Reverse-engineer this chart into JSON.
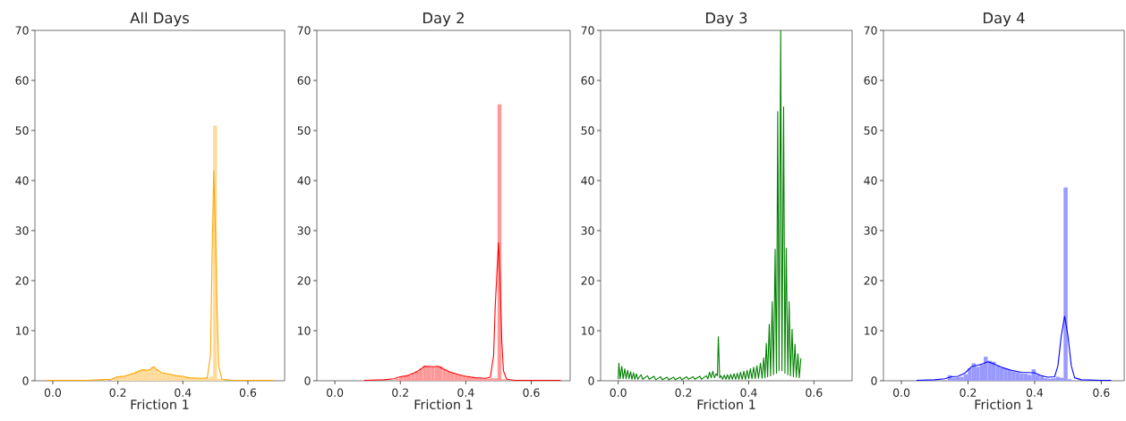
{
  "chart_data": [
    {
      "type": "histogram",
      "title": "All Days",
      "xlabel": "Friction 1",
      "xlim": [
        -0.055,
        0.713
      ],
      "ylim": [
        0,
        70
      ],
      "xticks": [
        {
          "value": 0,
          "label": "0.0"
        },
        {
          "value": 0.2,
          "label": "0.2"
        },
        {
          "value": 0.4,
          "label": "0.4"
        },
        {
          "value": 0.6,
          "label": "0.6"
        }
      ],
      "yticks": [
        0,
        10,
        20,
        30,
        40,
        50,
        60,
        70
      ],
      "series": [
        {
          "color": "#ffdb99",
          "bins": [
            0.145,
            0.157,
            0.169,
            0.181,
            0.193,
            0.205,
            0.217,
            0.229,
            0.241,
            0.253,
            0.265,
            0.277,
            0.289,
            0.301,
            0.313,
            0.325,
            0.337,
            0.349,
            0.361,
            0.373,
            0.385,
            0.397,
            0.409,
            0.421,
            0.433,
            0.445,
            0.457,
            0.469,
            0.481,
            0.493,
            0.505,
            0.517,
            0.529
          ],
          "values": [
            null,
            0.3,
            null,
            0.5,
            0.8,
            1.0,
            1.0,
            1.3,
            1.6,
            1.9,
            2.2,
            2.2,
            2.2,
            2.8,
            2.4,
            1.7,
            1.5,
            1.4,
            1.2,
            1.0,
            0.9,
            0.8,
            0.7,
            0.5,
            0.5,
            0.5,
            0.5,
            0.6,
            0.8,
            51,
            0.4,
            0.2
          ]
        },
        {
          "type": "line",
          "color": "#ffa500",
          "x": [
            -0.02,
            0.1,
            0.15,
            0.18,
            0.2,
            0.22,
            0.25,
            0.275,
            0.29,
            0.3,
            0.31,
            0.32,
            0.335,
            0.36,
            0.38,
            0.4,
            0.42,
            0.46,
            0.475,
            0.485,
            0.49,
            0.495,
            0.5,
            0.505,
            0.51,
            0.52,
            0.55,
            0.68
          ],
          "values": [
            0.1,
            0.1,
            0.2,
            0.3,
            0.8,
            0.9,
            1.5,
            2.2,
            2.1,
            2.2,
            2.8,
            2.2,
            1.6,
            1.3,
            1.0,
            0.9,
            0.6,
            0.5,
            0.6,
            5,
            25,
            42,
            30,
            15,
            3,
            0.3,
            0.1,
            0.1
          ]
        }
      ]
    },
    {
      "type": "histogram",
      "title": "Day 2",
      "xlabel": "Friction 1",
      "xlim": [
        -0.055,
        0.719
      ],
      "ylim": [
        0,
        70
      ],
      "xticks": [
        {
          "value": 0,
          "label": "0.0"
        },
        {
          "value": 0.2,
          "label": "0.2"
        },
        {
          "value": 0.4,
          "label": "0.4"
        },
        {
          "value": 0.6,
          "label": "0.6"
        }
      ],
      "yticks": [
        0,
        10,
        20,
        30,
        40,
        50,
        60,
        70
      ],
      "series": [
        {
          "color": "#ff9999",
          "bins": [
            0.185,
            0.197,
            0.209,
            0.221,
            0.233,
            0.245,
            0.257,
            0.269,
            0.281,
            0.293,
            0.305,
            0.317,
            0.329,
            0.341,
            0.353,
            0.365,
            0.377,
            0.389,
            0.401,
            0.413,
            0.425,
            0.437,
            0.449,
            0.461,
            0.473,
            0.485,
            0.497,
            0.509,
            0.521
          ],
          "values": [
            0.4,
            0.8,
            0.9,
            1.1,
            1.4,
            1.9,
            2.4,
            3.0,
            2.9,
            2.8,
            2.8,
            2.9,
            2.3,
            1.9,
            1.6,
            1.3,
            1.1,
            0.9,
            0.8,
            0.6,
            0.5,
            0.4,
            0.4,
            0.4,
            0.5,
            0.5,
            55.2,
            0.3
          ]
        },
        {
          "type": "line",
          "color": "#ff0000",
          "x": [
            0.09,
            0.15,
            0.18,
            0.2,
            0.22,
            0.25,
            0.275,
            0.3,
            0.315,
            0.33,
            0.35,
            0.38,
            0.4,
            0.43,
            0.46,
            0.475,
            0.485,
            0.49,
            0.5,
            0.505,
            0.51,
            0.515,
            0.525,
            0.55,
            0.69
          ],
          "values": [
            0.1,
            0.2,
            0.4,
            0.8,
            1.0,
            1.8,
            2.9,
            2.8,
            2.9,
            2.4,
            1.8,
            1.2,
            0.9,
            0.6,
            0.5,
            0.7,
            5,
            15,
            27.6,
            20,
            8,
            2,
            0.3,
            0.1,
            0.1
          ]
        }
      ]
    },
    {
      "type": "line",
      "title": "Day 3",
      "xlabel": "Friction 1",
      "xlim": [
        -0.054,
        0.717
      ],
      "ylim": [
        0,
        70
      ],
      "xticks": [
        {
          "value": 0,
          "label": "0.0"
        },
        {
          "value": 0.2,
          "label": "0.2"
        },
        {
          "value": 0.4,
          "label": "0.4"
        },
        {
          "value": 0.6,
          "label": "0.6"
        }
      ],
      "yticks": [
        0,
        10,
        20,
        30,
        40,
        50,
        60,
        70
      ],
      "series": [
        {
          "color": "#008000",
          "x": [
            0.0,
            0.002,
            0.006,
            0.011,
            0.015,
            0.02,
            0.024,
            0.029,
            0.033,
            0.038,
            0.042,
            0.047,
            0.051,
            0.056,
            0.06,
            0.07,
            0.075,
            0.09,
            0.095,
            0.11,
            0.115,
            0.13,
            0.135,
            0.15,
            0.155,
            0.17,
            0.175,
            0.19,
            0.195,
            0.21,
            0.215,
            0.23,
            0.235,
            0.25,
            0.255,
            0.27,
            0.275,
            0.28,
            0.285,
            0.29,
            0.295,
            0.3,
            0.304,
            0.307,
            0.311,
            0.315,
            0.32,
            0.325,
            0.33,
            0.335,
            0.34,
            0.345,
            0.35,
            0.355,
            0.36,
            0.365,
            0.37,
            0.375,
            0.38,
            0.385,
            0.39,
            0.395,
            0.4,
            0.405,
            0.41,
            0.415,
            0.42,
            0.425,
            0.43,
            0.436,
            0.441,
            0.446,
            0.45,
            0.454,
            0.458,
            0.463,
            0.467,
            0.472,
            0.476,
            0.481,
            0.485,
            0.489,
            0.493,
            0.498,
            0.502,
            0.507,
            0.511,
            0.515,
            0.52,
            0.524,
            0.528,
            0.533,
            0.537,
            0.542,
            0.546,
            0.551,
            0.555,
            0.56
          ],
          "values": [
            0.3,
            3.5,
            0.4,
            2.9,
            0.4,
            2.4,
            0.4,
            2.1,
            0.4,
            1.8,
            0.3,
            1.6,
            0.3,
            1.4,
            0.3,
            1.2,
            0.3,
            1.0,
            0.3,
            0.9,
            0.2,
            0.8,
            0.2,
            0.7,
            0.2,
            0.7,
            0.2,
            0.7,
            0.2,
            0.8,
            0.3,
            0.8,
            0.3,
            0.9,
            0.3,
            1.0,
            0.4,
            1.7,
            0.6,
            1.9,
            0.6,
            1.4,
            1.0,
            8.8,
            0.6,
            1.0,
            0.3,
            1.1,
            0.3,
            1.2,
            0.3,
            1.3,
            0.3,
            1.4,
            0.3,
            1.5,
            0.3,
            1.7,
            0.3,
            1.9,
            0.3,
            2.1,
            0.4,
            2.4,
            0.4,
            2.7,
            0.4,
            3.0,
            0.5,
            3.5,
            0.5,
            4.6,
            0.6,
            7.5,
            0.8,
            11.3,
            1.0,
            15.8,
            1.2,
            26.3,
            1.5,
            53.8,
            2,
            70,
            2,
            54.7,
            1.5,
            26.5,
            1.2,
            15.8,
            1.0,
            10.3,
            0.8,
            7.3,
            0.7,
            5.4,
            0.6,
            4.5
          ]
        }
      ]
    },
    {
      "type": "histogram",
      "title": "Day 4",
      "xlabel": "Friction 1",
      "xlim": [
        -0.054,
        0.669
      ],
      "ylim": [
        0,
        70
      ],
      "xticks": [
        {
          "value": 0,
          "label": "0.0"
        },
        {
          "value": 0.2,
          "label": "0.2"
        },
        {
          "value": 0.4,
          "label": "0.4"
        },
        {
          "value": 0.6,
          "label": "0.6"
        }
      ],
      "yticks": [
        0,
        10,
        20,
        30,
        40,
        50,
        60,
        70
      ],
      "series": [
        {
          "color": "#9999ff",
          "bins": [
            0.139,
            0.151,
            0.163,
            0.175,
            0.187,
            0.199,
            0.211,
            0.223,
            0.235,
            0.247,
            0.259,
            0.271,
            0.283,
            0.295,
            0.307,
            0.319,
            0.331,
            0.343,
            0.355,
            0.367,
            0.379,
            0.391,
            0.403,
            0.415,
            0.427,
            0.439,
            0.451,
            0.463,
            0.475,
            0.487,
            0.499,
            0.511
          ],
          "values": [
            1.1,
            0.6,
            0.7,
            0.8,
            1.3,
            2.5,
            3.5,
            2.8,
            3.2,
            4.8,
            4.0,
            3.8,
            3.0,
            2.6,
            2.4,
            2.2,
            1.9,
            1.7,
            1.5,
            1.4,
            1.2,
            2.3,
            1.2,
            0.8,
            0.5,
            0.4,
            0.5,
            0.8,
            0.6,
            38.6,
            0.3
          ]
        },
        {
          "type": "line",
          "color": "#0000ff",
          "x": [
            0.045,
            0.1,
            0.13,
            0.15,
            0.17,
            0.19,
            0.21,
            0.24,
            0.26,
            0.28,
            0.3,
            0.33,
            0.36,
            0.39,
            0.4,
            0.42,
            0.44,
            0.46,
            0.47,
            0.48,
            0.49,
            0.5,
            0.51,
            0.52,
            0.54,
            0.6,
            0.63
          ],
          "values": [
            0.1,
            0.2,
            0.4,
            0.8,
            0.9,
            1.5,
            2.8,
            3.3,
            3.8,
            3.3,
            2.7,
            2.1,
            1.7,
            1.6,
            1.6,
            1.0,
            0.7,
            0.8,
            3,
            9,
            12.9,
            9,
            3,
            0.6,
            0.2,
            0.1,
            0.1
          ]
        }
      ]
    }
  ]
}
